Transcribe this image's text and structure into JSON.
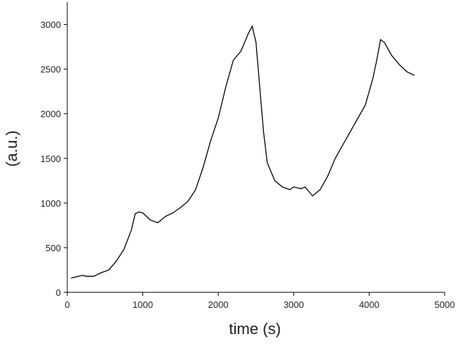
{
  "chart_data": {
    "type": "line",
    "xlabel": "time (s)",
    "ylabel": "(a.u.)",
    "xlim": [
      0,
      5000
    ],
    "xticks": [
      0,
      1000,
      2000,
      3000,
      4000,
      5000
    ],
    "ylim": [
      0,
      3250
    ],
    "yticks": [
      0,
      500,
      1000,
      1500,
      2000,
      2500,
      3000
    ],
    "x": [
      50,
      150,
      200,
      250,
      350,
      450,
      550,
      650,
      750,
      850,
      900,
      950,
      1000,
      1050,
      1100,
      1200,
      1300,
      1400,
      1500,
      1600,
      1700,
      1800,
      1900,
      2000,
      2100,
      2200,
      2300,
      2400,
      2450,
      2500,
      2550,
      2600,
      2650,
      2750,
      2850,
      2950,
      3000,
      3100,
      3150,
      3250,
      3350,
      3450,
      3550,
      3650,
      3750,
      3850,
      3950,
      4050,
      4100,
      4150,
      4200,
      4300,
      4400,
      4500,
      4600
    ],
    "series": [
      {
        "color": "#000000",
        "values": [
          160,
          180,
          190,
          180,
          180,
          220,
          250,
          350,
          480,
          700,
          880,
          900,
          890,
          850,
          810,
          780,
          850,
          890,
          950,
          1020,
          1150,
          1400,
          1700,
          1950,
          2300,
          2600,
          2700,
          2900,
          2980,
          2800,
          2300,
          1800,
          1450,
          1250,
          1180,
          1150,
          1180,
          1160,
          1180,
          1080,
          1150,
          1300,
          1500,
          1650,
          1800,
          1950,
          2100,
          2400,
          2600,
          2830,
          2800,
          2650,
          2550,
          2470,
          2430
        ]
      }
    ]
  }
}
